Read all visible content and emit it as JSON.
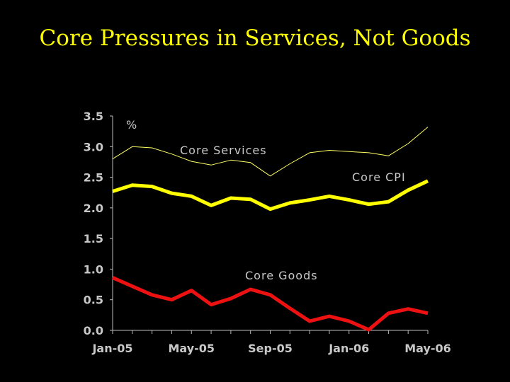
{
  "title": "Core Pressures in Services, Not Goods",
  "chart_data": {
    "type": "line",
    "title": "Core Pressures in Services, Not Goods",
    "ylabel": "%",
    "xlabel": "",
    "ylim": [
      0,
      3.5
    ],
    "yticks": [
      0.0,
      0.5,
      1.0,
      1.5,
      2.0,
      2.5,
      3.0,
      3.5
    ],
    "ytick_labels": [
      "0.0",
      "0.5",
      "1.0",
      "1.5",
      "2.0",
      "2.5",
      "3.0",
      "3.5"
    ],
    "x": [
      "Jan-05",
      "Feb-05",
      "Mar-05",
      "Apr-05",
      "May-05",
      "Jun-05",
      "Jul-05",
      "Aug-05",
      "Sep-05",
      "Oct-05",
      "Nov-05",
      "Dec-05",
      "Jan-06",
      "Feb-06",
      "Mar-06",
      "Apr-06",
      "May-06"
    ],
    "xtick_labels": [
      "Jan-05",
      "May-05",
      "Sep-05",
      "Jan-06",
      "May-06"
    ],
    "xtick_index": [
      0,
      4,
      8,
      12,
      16
    ],
    "grid": false,
    "series": [
      {
        "name": "Core Services",
        "color": "#ffff66",
        "width": 1,
        "values": [
          2.8,
          3.0,
          2.98,
          2.88,
          2.76,
          2.7,
          2.78,
          2.74,
          2.52,
          2.72,
          2.9,
          2.94,
          2.92,
          2.9,
          2.85,
          3.05,
          3.32
        ]
      },
      {
        "name": "Core CPI",
        "color": "#ffff00",
        "width": 5,
        "values": [
          2.27,
          2.37,
          2.35,
          2.24,
          2.19,
          2.04,
          2.16,
          2.14,
          1.98,
          2.08,
          2.13,
          2.19,
          2.13,
          2.06,
          2.1,
          2.29,
          2.44
        ]
      },
      {
        "name": "Core Goods",
        "color": "#ee1111",
        "width": 5,
        "values": [
          0.86,
          0.72,
          0.58,
          0.5,
          0.65,
          0.42,
          0.52,
          0.67,
          0.58,
          0.36,
          0.15,
          0.23,
          0.15,
          0.01,
          0.28,
          0.35,
          0.28
        ]
      }
    ]
  }
}
